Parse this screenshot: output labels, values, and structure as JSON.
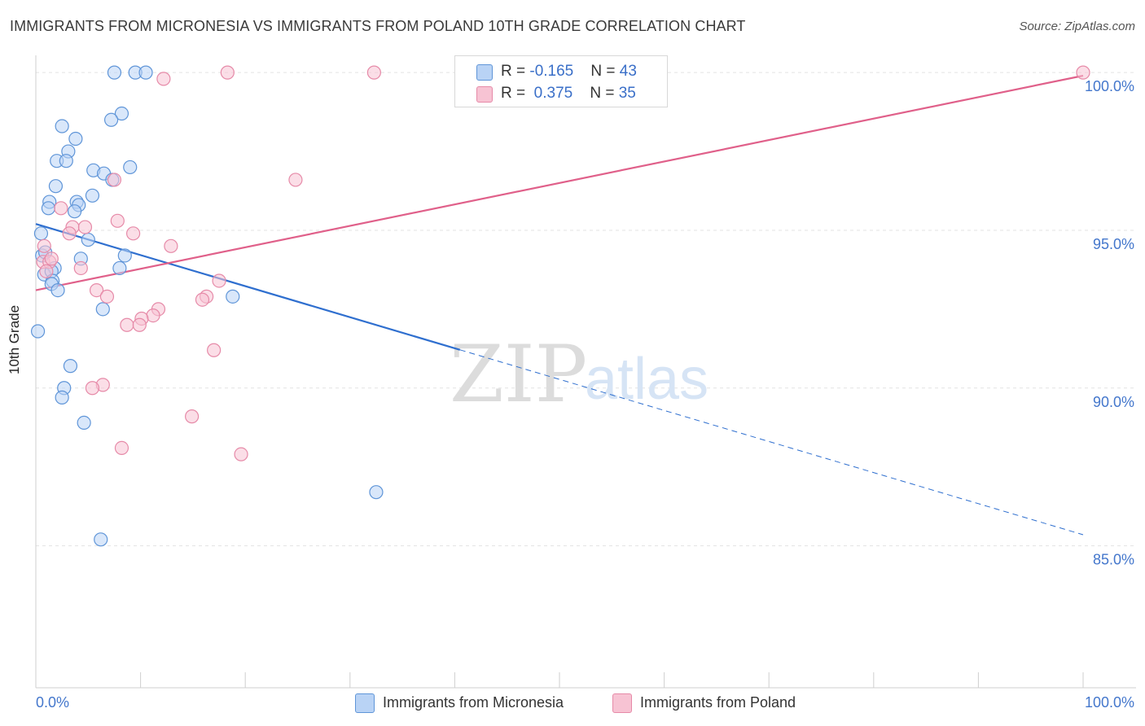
{
  "title": "IMMIGRANTS FROM MICRONESIA VS IMMIGRANTS FROM POLAND 10TH GRADE CORRELATION CHART",
  "source": "Source: ZipAtlas.com",
  "watermark": {
    "zip": "ZIP",
    "atlas": "atlas"
  },
  "legend": {
    "rows": [
      {
        "r_label": "R = ",
        "r_value": "-0.165",
        "n_label": "N = ",
        "n_value": "43"
      },
      {
        "r_label": "R = ",
        "r_value": " 0.375",
        "n_label": "N = ",
        "n_value": "35"
      }
    ]
  },
  "bottom_legend": [
    "Immigrants from Micronesia",
    "Immigrants from Poland"
  ],
  "colors": {
    "blue_fill": "#b9d3f5",
    "blue_stroke": "#5f95d8",
    "blue_line": "#2f6fcf",
    "pink_fill": "#f7c3d3",
    "pink_stroke": "#e68aa8",
    "pink_line": "#e0608a",
    "tick_text": "#4477cc",
    "grid": "#e3e3e3"
  },
  "chart_data": {
    "type": "scatter",
    "title": "IMMIGRANTS FROM MICRONESIA VS IMMIGRANTS FROM POLAND 10TH GRADE CORRELATION CHART",
    "xlabel": "",
    "ylabel": "10th Grade",
    "xlim": [
      0,
      100
    ],
    "ylim": [
      80.5,
      100.7
    ],
    "x_tick_labels": [
      {
        "value": 0,
        "label": "0.0%"
      },
      {
        "value": 100,
        "label": "100.0%"
      }
    ],
    "y_tick_labels": [
      {
        "value": 100,
        "label": "100.0%"
      },
      {
        "value": 95,
        "label": "95.0%"
      },
      {
        "value": 90,
        "label": "90.0%"
      },
      {
        "value": 85,
        "label": "85.0%"
      }
    ],
    "grid": true,
    "series": [
      {
        "name": "Immigrants from Micronesia",
        "color": "blue",
        "R": -0.165,
        "N": 43,
        "trend": {
          "x0": 0,
          "y0": 95.2,
          "x1": 100,
          "y1": 85.35,
          "solid_until_x": 40.5
        },
        "points": [
          [
            7.5,
            100
          ],
          [
            9.5,
            100
          ],
          [
            10.5,
            100
          ],
          [
            8.2,
            98.7
          ],
          [
            2.5,
            98.3
          ],
          [
            7.2,
            98.5
          ],
          [
            3.8,
            97.9
          ],
          [
            3.1,
            97.5
          ],
          [
            2.0,
            97.2
          ],
          [
            2.9,
            97.2
          ],
          [
            5.5,
            96.9
          ],
          [
            9.0,
            97.0
          ],
          [
            6.5,
            96.8
          ],
          [
            7.3,
            96.6
          ],
          [
            1.9,
            96.4
          ],
          [
            5.4,
            96.1
          ],
          [
            1.3,
            95.9
          ],
          [
            3.9,
            95.9
          ],
          [
            1.2,
            95.7
          ],
          [
            4.1,
            95.8
          ],
          [
            3.7,
            95.6
          ],
          [
            0.5,
            94.9
          ],
          [
            5.0,
            94.7
          ],
          [
            0.6,
            94.2
          ],
          [
            0.9,
            94.3
          ],
          [
            4.3,
            94.1
          ],
          [
            8.5,
            94.2
          ],
          [
            8.0,
            93.8
          ],
          [
            1.8,
            93.8
          ],
          [
            0.8,
            93.6
          ],
          [
            1.5,
            93.7
          ],
          [
            1.6,
            93.4
          ],
          [
            1.5,
            93.3
          ],
          [
            2.1,
            93.1
          ],
          [
            18.8,
            92.9
          ],
          [
            6.4,
            92.5
          ],
          [
            0.2,
            91.8
          ],
          [
            3.3,
            90.7
          ],
          [
            2.7,
            90.0
          ],
          [
            2.5,
            89.7
          ],
          [
            4.6,
            88.9
          ],
          [
            32.5,
            86.7
          ],
          [
            6.2,
            85.2
          ]
        ]
      },
      {
        "name": "Immigrants from Poland",
        "color": "pink",
        "R": 0.375,
        "N": 35,
        "trend": {
          "x0": 0,
          "y0": 93.1,
          "x1": 100,
          "y1": 99.9,
          "solid_until_x": 100
        },
        "points": [
          [
            18.3,
            100
          ],
          [
            32.3,
            100
          ],
          [
            100,
            100
          ],
          [
            12.2,
            99.8
          ],
          [
            7.5,
            96.6
          ],
          [
            24.8,
            96.6
          ],
          [
            2.4,
            95.7
          ],
          [
            7.8,
            95.3
          ],
          [
            3.5,
            95.1
          ],
          [
            4.7,
            95.1
          ],
          [
            3.2,
            94.9
          ],
          [
            9.3,
            94.9
          ],
          [
            0.8,
            94.5
          ],
          [
            12.9,
            94.5
          ],
          [
            0.7,
            94.0
          ],
          [
            1.3,
            94.0
          ],
          [
            1.5,
            94.1
          ],
          [
            1.0,
            93.7
          ],
          [
            4.3,
            93.8
          ],
          [
            17.5,
            93.4
          ],
          [
            5.8,
            93.1
          ],
          [
            6.8,
            92.9
          ],
          [
            16.3,
            92.9
          ],
          [
            15.9,
            92.8
          ],
          [
            11.7,
            92.5
          ],
          [
            11.2,
            92.3
          ],
          [
            10.1,
            92.2
          ],
          [
            8.7,
            92.0
          ],
          [
            9.9,
            92.0
          ],
          [
            17.0,
            91.2
          ],
          [
            6.4,
            90.1
          ],
          [
            5.4,
            90.0
          ],
          [
            14.9,
            89.1
          ],
          [
            8.2,
            88.1
          ],
          [
            19.6,
            87.9
          ]
        ]
      }
    ]
  }
}
